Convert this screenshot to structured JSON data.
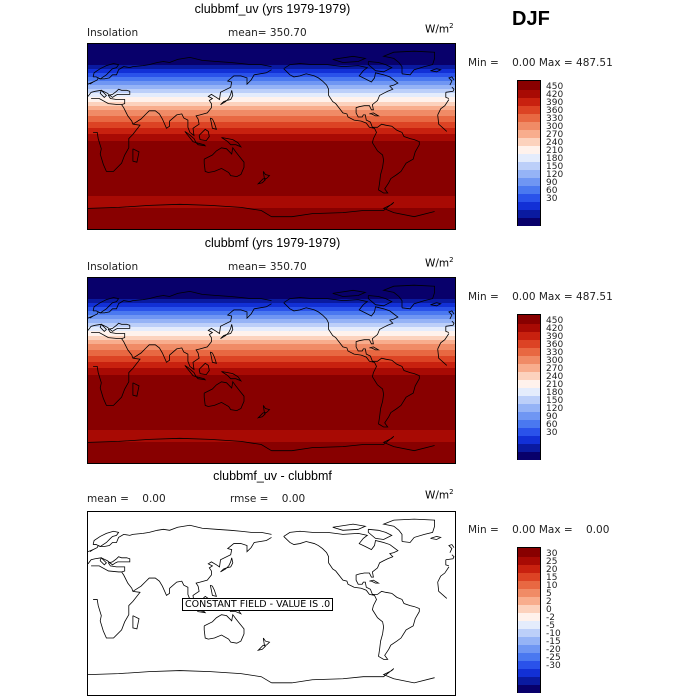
{
  "season": "DJF",
  "units": {
    "base": "W/m",
    "exp": "2"
  },
  "colorbar_colors": [
    "#08006b",
    "#0a1aa0",
    "#1230d6",
    "#2a52ea",
    "#4a78f0",
    "#6f96f3",
    "#95b3f6",
    "#bccff9",
    "#e4ecfc",
    "#fff2ec",
    "#fcd2bd",
    "#f8ad8d",
    "#f08b66",
    "#e86842",
    "#dc4324",
    "#c8210f",
    "#a80a04",
    "#880000"
  ],
  "panels": [
    {
      "title": "clubbmf_uv (yrs 1979-1979)",
      "variable": "Insolation",
      "stat_label": "mean=",
      "stat_value": "350.70",
      "minmax": "Min =    0.00 Max = 487.51",
      "colorbar_ticks": [
        "450",
        "420",
        "390",
        "360",
        "330",
        "300",
        "270",
        "240",
        "210",
        "180",
        "150",
        "120",
        "90",
        "60",
        "30"
      ],
      "bands": [
        {
          "lat_top": 90,
          "lat_bot": 70,
          "ci": 0
        },
        {
          "lat_top": 70,
          "lat_bot": 66,
          "ci": 1
        },
        {
          "lat_top": 66,
          "lat_bot": 62,
          "ci": 2
        },
        {
          "lat_top": 62,
          "lat_bot": 58,
          "ci": 3
        },
        {
          "lat_top": 58,
          "lat_bot": 54,
          "ci": 4
        },
        {
          "lat_top": 54,
          "lat_bot": 50,
          "ci": 5
        },
        {
          "lat_top": 50,
          "lat_bot": 46,
          "ci": 6
        },
        {
          "lat_top": 46,
          "lat_bot": 42,
          "ci": 7
        },
        {
          "lat_top": 42,
          "lat_bot": 38,
          "ci": 8
        },
        {
          "lat_top": 38,
          "lat_bot": 34,
          "ci": 9
        },
        {
          "lat_top": 34,
          "lat_bot": 30,
          "ci": 10
        },
        {
          "lat_top": 30,
          "lat_bot": 26,
          "ci": 11
        },
        {
          "lat_top": 26,
          "lat_bot": 20,
          "ci": 12
        },
        {
          "lat_top": 20,
          "lat_bot": 14,
          "ci": 13
        },
        {
          "lat_top": 14,
          "lat_bot": 8,
          "ci": 14
        },
        {
          "lat_top": 8,
          "lat_bot": 2,
          "ci": 15
        },
        {
          "lat_top": 2,
          "lat_bot": -4,
          "ci": 16
        },
        {
          "lat_top": -4,
          "lat_bot": -58,
          "ci": 17
        },
        {
          "lat_top": -58,
          "lat_bot": -70,
          "ci": 16
        },
        {
          "lat_top": -70,
          "lat_bot": -78,
          "ci": 17
        },
        {
          "lat_top": -78,
          "lat_bot": -90,
          "ci": 17
        }
      ]
    },
    {
      "title": "clubbmf (yrs 1979-1979)",
      "variable": "Insolation",
      "stat_label": "mean=",
      "stat_value": "350.70",
      "minmax": "Min =    0.00 Max = 487.51",
      "colorbar_ticks": [
        "450",
        "420",
        "390",
        "360",
        "330",
        "300",
        "270",
        "240",
        "210",
        "180",
        "150",
        "120",
        "90",
        "60",
        "30"
      ],
      "bands": [
        {
          "lat_top": 90,
          "lat_bot": 70,
          "ci": 0
        },
        {
          "lat_top": 70,
          "lat_bot": 66,
          "ci": 1
        },
        {
          "lat_top": 66,
          "lat_bot": 62,
          "ci": 2
        },
        {
          "lat_top": 62,
          "lat_bot": 58,
          "ci": 3
        },
        {
          "lat_top": 58,
          "lat_bot": 54,
          "ci": 4
        },
        {
          "lat_top": 54,
          "lat_bot": 50,
          "ci": 5
        },
        {
          "lat_top": 50,
          "lat_bot": 46,
          "ci": 6
        },
        {
          "lat_top": 46,
          "lat_bot": 42,
          "ci": 7
        },
        {
          "lat_top": 42,
          "lat_bot": 38,
          "ci": 8
        },
        {
          "lat_top": 38,
          "lat_bot": 34,
          "ci": 9
        },
        {
          "lat_top": 34,
          "lat_bot": 30,
          "ci": 10
        },
        {
          "lat_top": 30,
          "lat_bot": 26,
          "ci": 11
        },
        {
          "lat_top": 26,
          "lat_bot": 20,
          "ci": 12
        },
        {
          "lat_top": 20,
          "lat_bot": 14,
          "ci": 13
        },
        {
          "lat_top": 14,
          "lat_bot": 8,
          "ci": 14
        },
        {
          "lat_top": 8,
          "lat_bot": 2,
          "ci": 15
        },
        {
          "lat_top": 2,
          "lat_bot": -4,
          "ci": 16
        },
        {
          "lat_top": -4,
          "lat_bot": -58,
          "ci": 17
        },
        {
          "lat_top": -58,
          "lat_bot": -70,
          "ci": 16
        },
        {
          "lat_top": -70,
          "lat_bot": -78,
          "ci": 17
        },
        {
          "lat_top": -78,
          "lat_bot": -90,
          "ci": 17
        }
      ]
    },
    {
      "title": "clubbmf_uv - clubbmf",
      "stat1_label": "mean =",
      "stat1_value": "0.00",
      "stat2_label": "rmse =",
      "stat2_value": "0.00",
      "minmax": "Min =    0.00 Max =    0.00",
      "constant_text": "CONSTANT FIELD - VALUE IS .0",
      "colorbar_ticks": [
        "30",
        "25",
        "20",
        "15",
        "10",
        "5",
        "2",
        "0",
        "-2",
        "-5",
        "-10",
        "-15",
        "-20",
        "-25",
        "-30"
      ]
    }
  ]
}
